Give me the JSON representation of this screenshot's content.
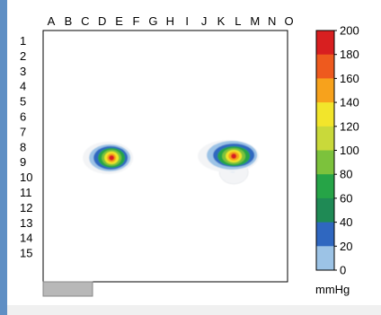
{
  "chart_data": {
    "type": "heatmap",
    "columns": [
      "A",
      "B",
      "C",
      "D",
      "E",
      "F",
      "G",
      "H",
      "I",
      "J",
      "K",
      "L",
      "M",
      "N",
      "O"
    ],
    "rows": [
      "1",
      "2",
      "3",
      "4",
      "5",
      "6",
      "7",
      "8",
      "9",
      "10",
      "11",
      "12",
      "13",
      "14",
      "15"
    ],
    "colorbar": {
      "ticks": [
        0,
        20,
        40,
        60,
        80,
        100,
        120,
        140,
        160,
        180,
        200
      ],
      "range": [
        0,
        200
      ],
      "unit": "mmHg",
      "colors": [
        "#f3f4f6",
        "#9cc3e6",
        "#2f67c0",
        "#1f8a55",
        "#26a447",
        "#7cc23c",
        "#c9d93a",
        "#f2e52b",
        "#f7a21c",
        "#ee5a1e",
        "#d81f20"
      ]
    },
    "hotspots": [
      {
        "center_col": 4.7,
        "center_row": 8.1,
        "peak": 200
      },
      {
        "center_col": 12.2,
        "center_row": 8.0,
        "peak": 200
      }
    ]
  },
  "colors": {
    "side_strip": "#5f8fc4",
    "grid_border": "#000000",
    "scroll_tab": "#b8b8b8"
  }
}
